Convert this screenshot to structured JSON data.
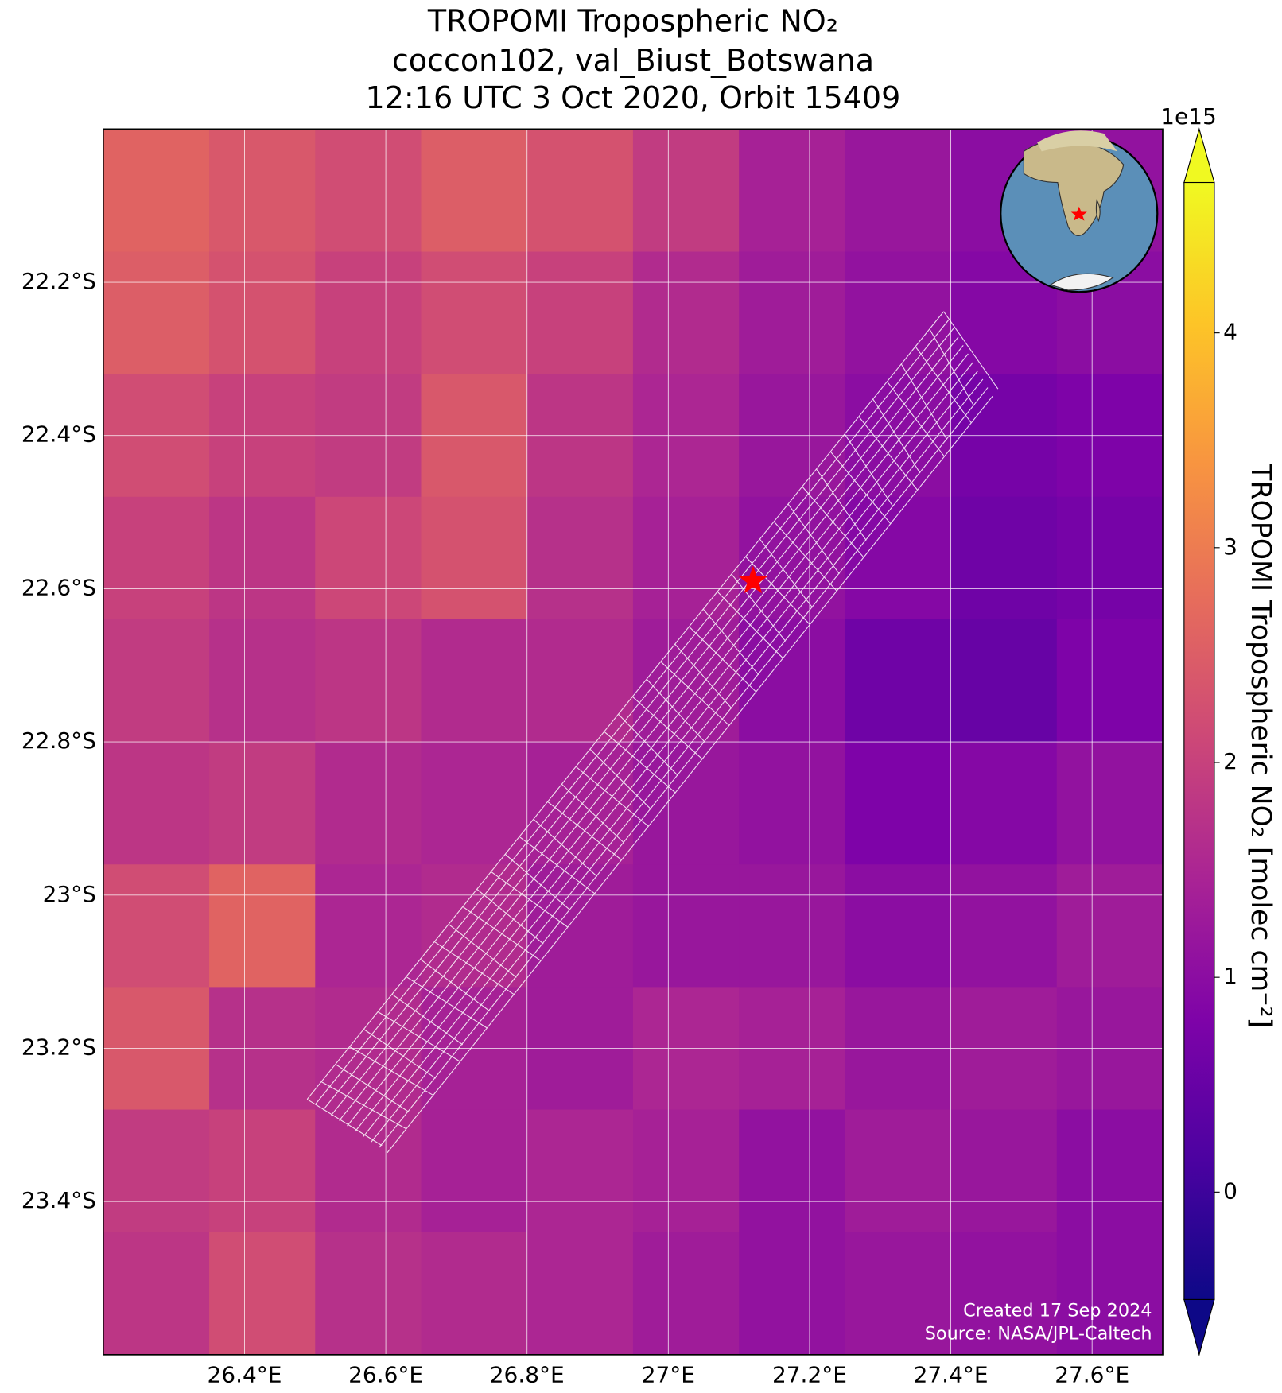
{
  "chart_data": {
    "type": "map",
    "title": [
      "TROPOMI Tropospheric NO₂",
      "coccon102, val_Biust_Botswana",
      "12:16 UTC 3 Oct 2020, Orbit 15409"
    ],
    "xlim": [
      26.2,
      27.7
    ],
    "ylim": [
      -23.6,
      -22.0
    ],
    "xticks": [
      {
        "value": 26.4,
        "label": "26.4°E"
      },
      {
        "value": 26.6,
        "label": "26.6°E"
      },
      {
        "value": 26.8,
        "label": "26.8°E"
      },
      {
        "value": 27.0,
        "label": "27°E"
      },
      {
        "value": 27.2,
        "label": "27.2°E"
      },
      {
        "value": 27.4,
        "label": "27.4°E"
      },
      {
        "value": 27.6,
        "label": "27.6°E"
      }
    ],
    "yticks": [
      {
        "value": -22.2,
        "label": "22.2°S"
      },
      {
        "value": -22.4,
        "label": "22.4°S"
      },
      {
        "value": -22.6,
        "label": "22.6°S"
      },
      {
        "value": -22.8,
        "label": "22.8°S"
      },
      {
        "value": -23.0,
        "label": "23°S"
      },
      {
        "value": -23.2,
        "label": "23.2°S"
      },
      {
        "value": -23.4,
        "label": "23.4°S"
      }
    ],
    "grid": true,
    "colormap": "plasma",
    "clim": [
      -0.5,
      4.7
    ],
    "cticks": [
      0,
      1,
      2,
      3,
      4
    ],
    "colorbar_exponent": "1e15",
    "colorbar_label": "TROPOMI Tropospheric NO₂ [molec cm⁻²]",
    "cells": {
      "lon_edges": [
        26.2,
        26.35,
        26.5,
        26.65,
        26.8,
        26.95,
        27.1,
        27.25,
        27.4,
        27.55,
        27.7
      ],
      "lat_edges": [
        -22.0,
        -22.16,
        -22.32,
        -22.48,
        -22.64,
        -22.8,
        -22.96,
        -23.12,
        -23.28,
        -23.44,
        -23.6
      ],
      "values": [
        [
          2.6,
          2.4,
          2.2,
          2.5,
          2.3,
          1.9,
          1.4,
          1.2,
          1.0,
          1.1
        ],
        [
          2.5,
          2.3,
          2.0,
          2.2,
          2.0,
          1.6,
          1.3,
          1.1,
          0.9,
          1.0
        ],
        [
          2.2,
          2.0,
          1.9,
          2.4,
          1.8,
          1.5,
          1.2,
          1.0,
          0.7,
          0.8
        ],
        [
          2.0,
          1.8,
          2.1,
          2.3,
          1.7,
          1.4,
          1.1,
          0.9,
          0.6,
          0.7
        ],
        [
          1.9,
          1.7,
          1.8,
          1.6,
          1.6,
          1.3,
          1.0,
          0.6,
          0.5,
          0.8
        ],
        [
          1.8,
          1.9,
          1.6,
          1.5,
          1.4,
          1.2,
          1.1,
          0.8,
          0.9,
          1.1
        ],
        [
          2.2,
          2.6,
          1.5,
          1.6,
          1.3,
          1.2,
          1.2,
          1.0,
          1.1,
          1.3
        ],
        [
          2.4,
          1.7,
          1.6,
          1.4,
          1.3,
          1.5,
          1.4,
          1.2,
          1.3,
          1.2
        ],
        [
          1.9,
          2.0,
          1.6,
          1.4,
          1.5,
          1.4,
          1.1,
          1.3,
          1.2,
          1.0
        ],
        [
          1.8,
          2.2,
          1.7,
          1.6,
          1.5,
          1.3,
          1.1,
          1.2,
          1.1,
          1.0
        ]
      ]
    },
    "site": {
      "lon": 27.12,
      "lat": -22.59,
      "color": "#ff0000"
    },
    "credits": [
      "Created 17 Sep 2024",
      "Source: NASA/JPL-Caltech"
    ]
  }
}
